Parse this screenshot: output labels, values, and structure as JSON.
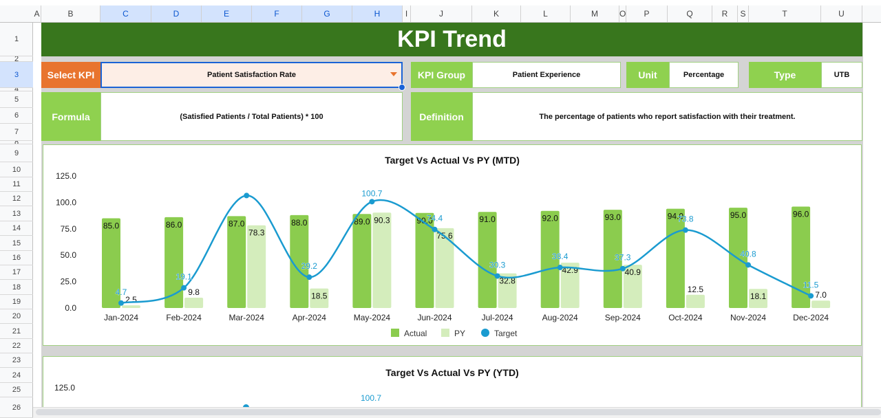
{
  "columns": [
    "A",
    "B",
    "C",
    "D",
    "E",
    "F",
    "G",
    "H",
    "I",
    "J",
    "K",
    "L",
    "M",
    "O",
    "P",
    "Q",
    "R",
    "S",
    "T",
    "U"
  ],
  "rows": [
    "1",
    "2",
    "3",
    "4",
    "5",
    "6",
    "7",
    "8",
    "9",
    "10",
    "11",
    "12",
    "13",
    "14",
    "15",
    "16",
    "17",
    "18",
    "19",
    "20",
    "21",
    "22",
    "23",
    "24",
    "25",
    "26"
  ],
  "header": {
    "title": "KPI Trend"
  },
  "selector": {
    "label": "Select KPI",
    "value": "Patient Satisfaction Rate"
  },
  "kpi_group": {
    "label": "KPI Group",
    "value": "Patient Experience"
  },
  "unit": {
    "label": "Unit",
    "value": "Percentage"
  },
  "type": {
    "label": "Type",
    "value": "UTB"
  },
  "formula": {
    "label": "Formula",
    "value": "(Satisfied Patients / Total Patients) * 100"
  },
  "definition": {
    "label": "Definition",
    "value": "The percentage of patients who report satisfaction with their treatment."
  },
  "colors": {
    "title_bg": "#38761d",
    "label_green": "#8fd14f",
    "select_orange": "#e8742e",
    "select_bg": "#fdeee6",
    "actual": "#8bcc4e",
    "py": "#d4edbc",
    "target": "#1a9bd0"
  },
  "chart_data": [
    {
      "type": "bar",
      "title": "Target Vs Actual Vs PY (MTD)",
      "categories": [
        "Jan-2024",
        "Feb-2024",
        "Mar-2024",
        "Apr-2024",
        "May-2024",
        "Jun-2024",
        "Jul-2024",
        "Aug-2024",
        "Sep-2024",
        "Oct-2024",
        "Nov-2024",
        "Dec-2024"
      ],
      "yticks": [
        "0.0",
        "25.0",
        "50.0",
        "75.0",
        "100.0",
        "125.0"
      ],
      "ylim": [
        0,
        125
      ],
      "grid": false,
      "legend": "bottom",
      "series": [
        {
          "name": "Actual",
          "type": "bar",
          "values": [
            85.0,
            86.0,
            87.0,
            88.0,
            89.0,
            90.0,
            91.0,
            92.0,
            93.0,
            94.0,
            95.0,
            96.0
          ],
          "labels": [
            "85.0",
            "86.0",
            "87.0",
            "88.0",
            "89.0",
            "90.0",
            "91.0",
            "92.0",
            "93.0",
            "94.0",
            "95.0",
            "96.0"
          ]
        },
        {
          "name": "PY",
          "type": "bar",
          "values": [
            2.5,
            9.8,
            78.3,
            18.5,
            90.3,
            75.6,
            32.8,
            42.9,
            40.9,
            12.5,
            18.1,
            7.0
          ],
          "labels": [
            "2.5",
            "9.8",
            "78.3",
            "18.5",
            "90.3",
            "75.6",
            "32.8",
            "42.9",
            "40.9",
            "12.5",
            "18.1",
            "7.0"
          ]
        },
        {
          "name": "Target",
          "type": "line",
          "values": [
            4.7,
            19.1,
            106.5,
            29.2,
            100.7,
            74.4,
            30.3,
            38.4,
            37.3,
            73.8,
            40.8,
            11.5
          ],
          "labels": [
            "4.7",
            "19.1",
            "",
            "29.2",
            "100.7",
            "74.4",
            "30.3",
            "38.4",
            "37.3",
            "73.8",
            "40.8",
            "11.5"
          ]
        }
      ]
    },
    {
      "type": "bar",
      "title": "Target Vs Actual Vs PY (YTD)",
      "yticks": [
        "125.0"
      ],
      "visible_labels": [
        "100.7"
      ]
    }
  ]
}
